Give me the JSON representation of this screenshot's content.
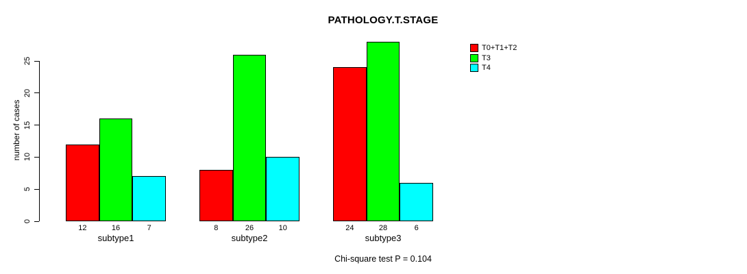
{
  "title": "PATHOLOGY.T.STAGE",
  "chart_data": {
    "type": "bar",
    "title": "PATHOLOGY.T.STAGE",
    "xlabel": "",
    "ylabel": "number of cases",
    "categories": [
      "subtype1",
      "subtype2",
      "subtype3"
    ],
    "series": [
      {
        "name": "T0+T1+T2",
        "color": "#ff0000",
        "values": [
          12,
          8,
          24
        ]
      },
      {
        "name": "T3",
        "color": "#00ff00",
        "values": [
          16,
          26,
          28
        ]
      },
      {
        "name": "T4",
        "color": "#00ffff",
        "values": [
          7,
          10,
          6
        ]
      }
    ],
    "bar_value_labels": [
      [
        "12",
        "16",
        "7"
      ],
      [
        "8",
        "26",
        "10"
      ],
      [
        "24",
        "28",
        "6"
      ]
    ],
    "yticks": [
      0,
      5,
      10,
      15,
      20,
      25
    ],
    "ylim": [
      0,
      28
    ],
    "grid": false,
    "legend_position": "top-right-outside",
    "annotation": "Chi-square test P = 0.104"
  },
  "colors": {
    "background": "#ffffff",
    "axis": "#000000",
    "text": "#000000"
  }
}
